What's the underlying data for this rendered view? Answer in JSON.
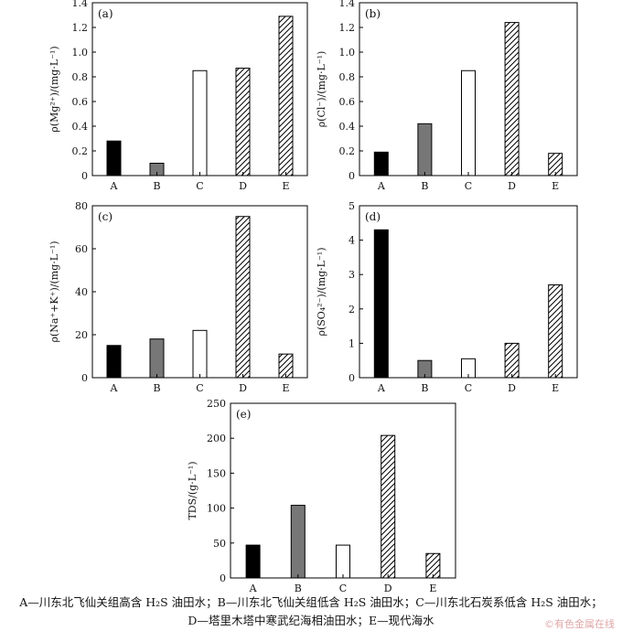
{
  "chart_data": [
    {
      "type": "bar",
      "panel": "(a)",
      "ylabel": "ρ(Mg²⁺)/(mg·L⁻¹)",
      "categories": [
        "A",
        "B",
        "C",
        "D",
        "E"
      ],
      "values": [
        0.28,
        0.1,
        0.85,
        0.87,
        1.29
      ],
      "ylim": [
        0,
        1.4
      ],
      "yticks": [
        0,
        0.2,
        0.4,
        0.6,
        0.8,
        1.0,
        1.2,
        1.4
      ],
      "ytick_labels": [
        "0",
        "0.2",
        "0.4",
        "0.6",
        "0.8",
        "1.0",
        "1.2",
        "1.4"
      ]
    },
    {
      "type": "bar",
      "panel": "(b)",
      "ylabel": "ρ(Cl⁻)/(mg·L⁻¹)",
      "categories": [
        "A",
        "B",
        "C",
        "D",
        "E"
      ],
      "values": [
        0.19,
        0.42,
        0.85,
        1.24,
        0.18
      ],
      "ylim": [
        0,
        1.4
      ],
      "yticks": [
        0,
        0.2,
        0.4,
        0.6,
        0.8,
        1.0,
        1.2,
        1.4
      ],
      "ytick_labels": [
        "0",
        "0.2",
        "0.4",
        "0.6",
        "0.8",
        "1.0",
        "1.2",
        "1.4"
      ]
    },
    {
      "type": "bar",
      "panel": "(c)",
      "ylabel": "ρ(Na⁺+K⁺)/(mg·L⁻¹)",
      "categories": [
        "A",
        "B",
        "C",
        "D",
        "E"
      ],
      "values": [
        15,
        18,
        22,
        75,
        11
      ],
      "ylim": [
        0,
        80
      ],
      "yticks": [
        0,
        20,
        40,
        60,
        80
      ],
      "ytick_labels": [
        "0",
        "20",
        "40",
        "60",
        "80"
      ]
    },
    {
      "type": "bar",
      "panel": "(d)",
      "ylabel": "ρ(SO₄²⁻)/(mg·L⁻¹)",
      "categories": [
        "A",
        "B",
        "C",
        "D",
        "E"
      ],
      "values": [
        4.3,
        0.5,
        0.55,
        1.0,
        2.7
      ],
      "ylim": [
        0,
        5
      ],
      "yticks": [
        0,
        1,
        2,
        3,
        4,
        5
      ],
      "ytick_labels": [
        "0",
        "1",
        "2",
        "3",
        "4",
        "5"
      ]
    },
    {
      "type": "bar",
      "panel": "(e)",
      "ylabel": "TDS/(g·L⁻¹)",
      "categories": [
        "A",
        "B",
        "C",
        "D",
        "E"
      ],
      "values": [
        47,
        104,
        47,
        204,
        35
      ],
      "ylim": [
        0,
        250
      ],
      "yticks": [
        0,
        50,
        100,
        150,
        200,
        250
      ],
      "ytick_labels": [
        "0",
        "50",
        "100",
        "150",
        "200",
        "250"
      ]
    }
  ],
  "bar_styles": [
    {
      "fill": "#000000"
    },
    {
      "fill": "#777777"
    },
    {
      "fill": "#ffffff"
    },
    {
      "fill": "hatch"
    },
    {
      "fill": "hatch"
    }
  ],
  "caption_line1": "A—川东北飞仙关组高含 H₂S 油田水；B—川东北飞仙关组低含 H₂S 油田水；C—川东北石炭系低含 H₂S 油田水；",
  "caption_line2": "D—塔里木塔中寒武纪海相油田水；E—现代海水",
  "watermark": "©有色金属在线"
}
